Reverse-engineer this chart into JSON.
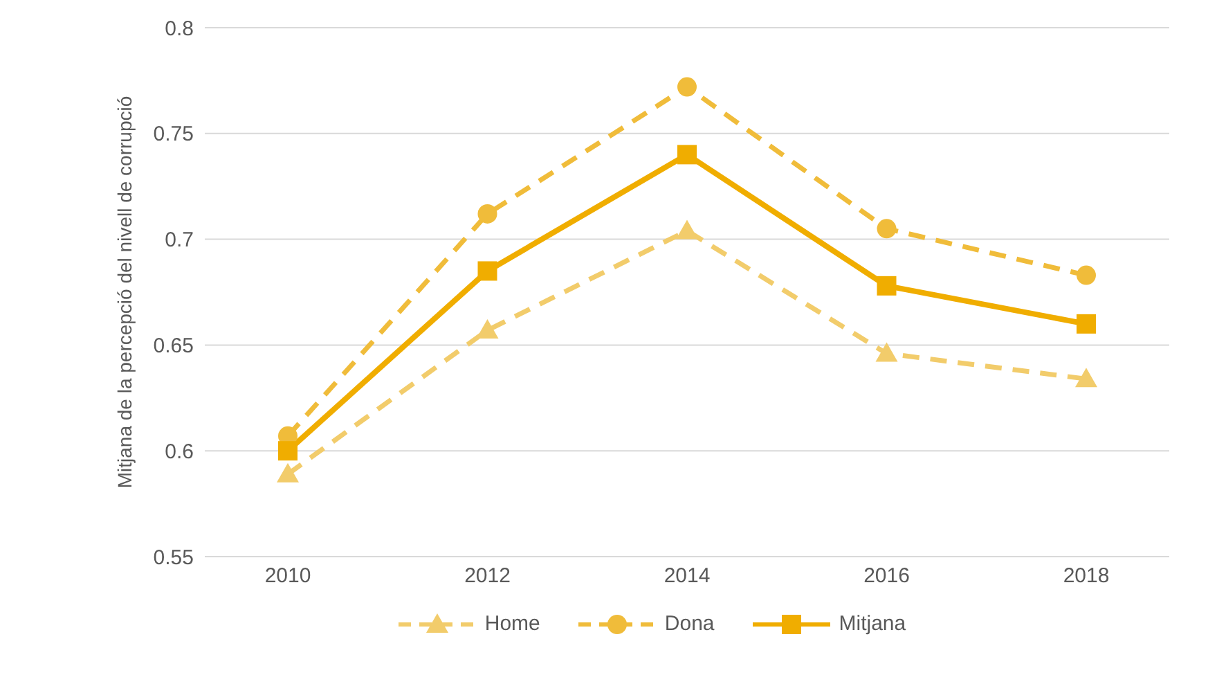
{
  "chart_data": {
    "type": "line",
    "ylabel": "Mitjana de la percepció del nivell de corrupció",
    "categories": [
      "2010",
      "2012",
      "2014",
      "2016",
      "2018"
    ],
    "series": [
      {
        "name": "Home",
        "color": "#f2cc6b",
        "marker": "triangle",
        "line_style": "dashed",
        "values": [
          0.589,
          0.657,
          0.704,
          0.646,
          0.634
        ]
      },
      {
        "name": "Dona",
        "color": "#f0bc3a",
        "marker": "circle",
        "line_style": "dashed",
        "values": [
          0.607,
          0.712,
          0.772,
          0.705,
          0.683
        ]
      },
      {
        "name": "Mitjana",
        "color": "#f0ad00",
        "marker": "square",
        "line_style": "solid",
        "values": [
          0.6,
          0.685,
          0.74,
          0.678,
          0.66
        ]
      }
    ],
    "ylim": [
      0.55,
      0.8
    ],
    "yticks": [
      0.55,
      0.6,
      0.65,
      0.7,
      0.75,
      0.8
    ],
    "grid": "y",
    "legend": "bottom"
  }
}
